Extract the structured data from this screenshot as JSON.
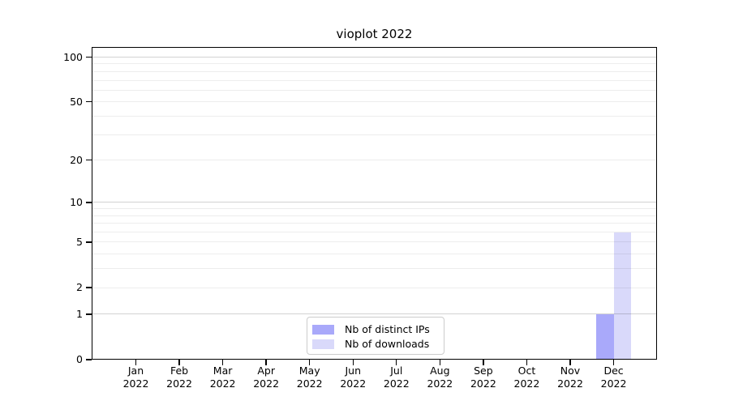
{
  "figure": {
    "background": "#ffffff"
  },
  "chart_data": {
    "type": "bar",
    "title": "vioplot 2022",
    "categories": [
      "Jan 2022",
      "Feb 2022",
      "Mar 2022",
      "Apr 2022",
      "May 2022",
      "Jun 2022",
      "Jul 2022",
      "Aug 2022",
      "Sep 2022",
      "Oct 2022",
      "Nov 2022",
      "Dec 2022"
    ],
    "series": [
      {
        "name": "Nb of distinct IPs",
        "color": "#a9a9fa",
        "values": [
          0,
          0,
          0,
          0,
          0,
          0,
          0,
          0,
          0,
          0,
          0,
          1
        ]
      },
      {
        "name": "Nb of downloads",
        "color": "#d9d9fa",
        "values": [
          0,
          0,
          0,
          0,
          0,
          0,
          0,
          0,
          0,
          0,
          0,
          6
        ]
      }
    ],
    "xlabel": "",
    "ylabel": "",
    "yscale": "log(1+x)",
    "ylim": [
      0,
      100
    ],
    "ytick_values": [
      100,
      50,
      20,
      10,
      5,
      2,
      1,
      0
    ],
    "grid": "on",
    "gridlines_major": [
      1,
      10,
      100
    ],
    "gridlines_minor": [
      2,
      3,
      4,
      5,
      6,
      7,
      8,
      9,
      20,
      30,
      40,
      50,
      60,
      70,
      80,
      90
    ],
    "legend_position": "bottom-center-inside"
  },
  "colors": {
    "grid_minor": "#ededed",
    "grid_major": "#d2d2d2",
    "axis": "#000000",
    "legend_border": "#cccccc"
  }
}
